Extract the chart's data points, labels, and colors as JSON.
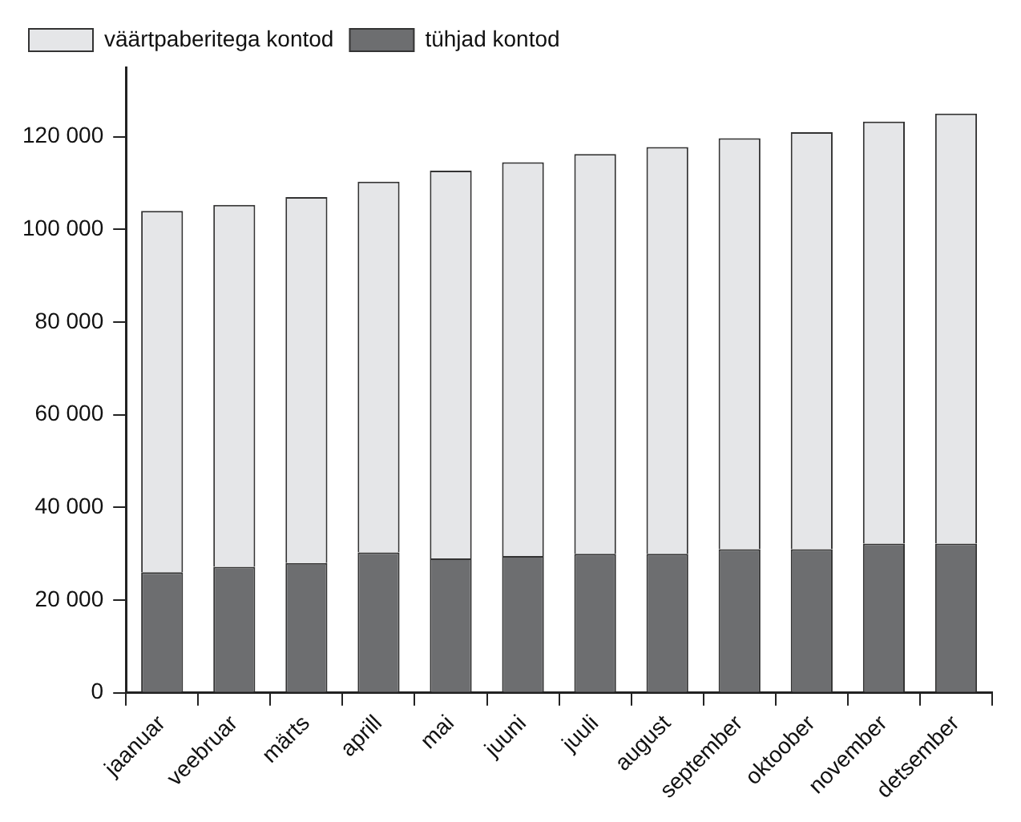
{
  "chart_data": {
    "type": "bar",
    "stacked": true,
    "categories": [
      "jaanuar",
      "veebruar",
      "märts",
      "aprill",
      "mai",
      "juuni",
      "juuli",
      "august",
      "september",
      "oktoober",
      "november",
      "detsember"
    ],
    "series": [
      {
        "name": "tühjad kontod",
        "color": "#6d6e70",
        "values": [
          26000,
          27200,
          28000,
          30300,
          29000,
          29500,
          30000,
          30000,
          31000,
          31000,
          32200,
          32200
        ]
      },
      {
        "name": "väärtpaberitega kontod",
        "color": "#e5e6e8",
        "values": [
          78000,
          78100,
          79000,
          80000,
          83700,
          85000,
          86300,
          87800,
          88700,
          90000,
          91100,
          92800
        ]
      }
    ],
    "ylim": [
      0,
      135000
    ],
    "yticks": [
      0,
      {
        "value": 20000,
        "label": "20 000"
      },
      {
        "value": 40000,
        "label": "40 000"
      },
      {
        "value": 60000,
        "label": "60 000"
      },
      {
        "value": 80000,
        "label": "80 000"
      },
      {
        "value": 100000,
        "label": "100 000"
      },
      {
        "value": 120000,
        "label": "120 000"
      }
    ],
    "grid": false,
    "legend": "top left"
  }
}
